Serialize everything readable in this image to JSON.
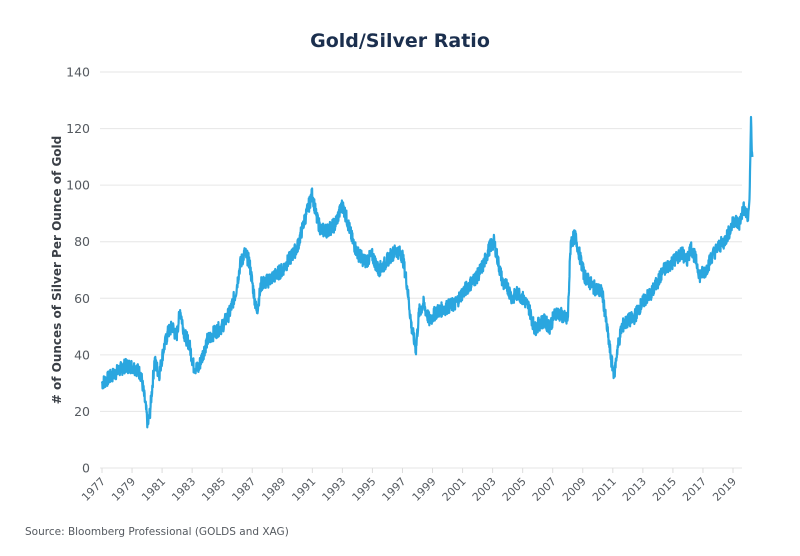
{
  "chart_data": {
    "type": "line",
    "title": "Gold/Silver Ratio",
    "xlabel": "",
    "ylabel": "# of Ounces of Silver Per Ounce of Gold",
    "ylim": [
      0,
      140
    ],
    "xlim": [
      1976.9,
      2020.4
    ],
    "grid": true,
    "yticks": [
      "0",
      "20",
      "40",
      "60",
      "80",
      "100",
      "120",
      "140"
    ],
    "xticks": [
      "1977",
      "1979",
      "1981",
      "1983",
      "1985",
      "1987",
      "1989",
      "1991",
      "1993",
      "1995",
      "1997",
      "1999",
      "2001",
      "2003",
      "2005",
      "2007",
      "2009",
      "2011",
      "2013",
      "2015",
      "2017",
      "2019"
    ],
    "line_color": "#2aa6df",
    "series": [
      {
        "name": "Gold/Silver Ratio",
        "x": [
          1977.0,
          1977.5,
          1978.0,
          1978.5,
          1979.0,
          1979.3,
          1979.6,
          1979.9,
          1980.05,
          1980.2,
          1980.5,
          1980.8,
          1981.1,
          1981.4,
          1981.7,
          1981.95,
          1982.2,
          1982.5,
          1982.8,
          1983.1,
          1983.4,
          1983.7,
          1984.0,
          1984.5,
          1985.0,
          1985.5,
          1985.9,
          1986.2,
          1986.5,
          1986.8,
          1987.1,
          1987.3,
          1987.6,
          1988.0,
          1988.5,
          1989.0,
          1989.5,
          1990.0,
          1990.5,
          1991.0,
          1991.3,
          1991.6,
          1992.0,
          1992.5,
          1993.0,
          1993.3,
          1993.7,
          1994.0,
          1994.5,
          1995.0,
          1995.4,
          1995.8,
          1996.2,
          1996.6,
          1997.0,
          1997.3,
          1997.6,
          1997.9,
          1998.1,
          1998.4,
          1998.8,
          1999.2,
          1999.6,
          2000.0,
          2000.5,
          2001.0,
          2001.5,
          2002.0,
          2002.4,
          2002.8,
          2003.1,
          2003.4,
          2003.7,
          2004.0,
          2004.3,
          2004.7,
          2005.0,
          2005.4,
          2005.8,
          2006.1,
          2006.4,
          2006.8,
          2007.2,
          2007.6,
          2008.0,
          2008.2,
          2008.5,
          2008.8,
          2009.1,
          2009.4,
          2009.7,
          2010.0,
          2010.3,
          2010.6,
          2010.9,
          2011.1,
          2011.3,
          2011.6,
          2012.0,
          2012.4,
          2012.8,
          2013.2,
          2013.6,
          2014.0,
          2014.4,
          2014.8,
          2015.2,
          2015.6,
          2015.9,
          2016.2,
          2016.5,
          2016.8,
          2017.2,
          2017.6,
          2018.0,
          2018.4,
          2018.8,
          2019.1,
          2019.4,
          2019.7,
          2020.0,
          2020.1,
          2020.2,
          2020.25,
          2020.3
        ],
        "y": [
          30,
          32,
          34,
          36,
          36,
          35,
          33,
          22,
          15,
          20,
          38,
          33,
          42,
          48,
          50,
          46,
          56,
          47,
          44,
          36,
          35,
          40,
          45,
          48,
          50,
          55,
          62,
          72,
          76,
          73,
          62,
          55,
          65,
          66,
          68,
          70,
          74,
          78,
          88,
          97,
          88,
          84,
          84,
          86,
          93,
          88,
          80,
          76,
          73,
          75,
          70,
          72,
          75,
          77,
          75,
          65,
          50,
          42,
          55,
          58,
          52,
          55,
          56,
          57,
          58,
          62,
          65,
          68,
          72,
          78,
          80,
          72,
          65,
          64,
          60,
          62,
          60,
          57,
          49,
          51,
          52,
          50,
          55,
          54,
          52,
          80,
          82,
          75,
          68,
          66,
          64,
          63,
          62,
          50,
          38,
          33,
          42,
          50,
          52,
          53,
          57,
          60,
          62,
          66,
          70,
          72,
          74,
          76,
          73,
          78,
          74,
          68,
          70,
          75,
          78,
          80,
          84,
          88,
          86,
          92,
          88,
          95,
          124,
          112,
          110
        ]
      }
    ]
  },
  "source": "Source: Bloomberg Professional (GOLDS and XAG)"
}
